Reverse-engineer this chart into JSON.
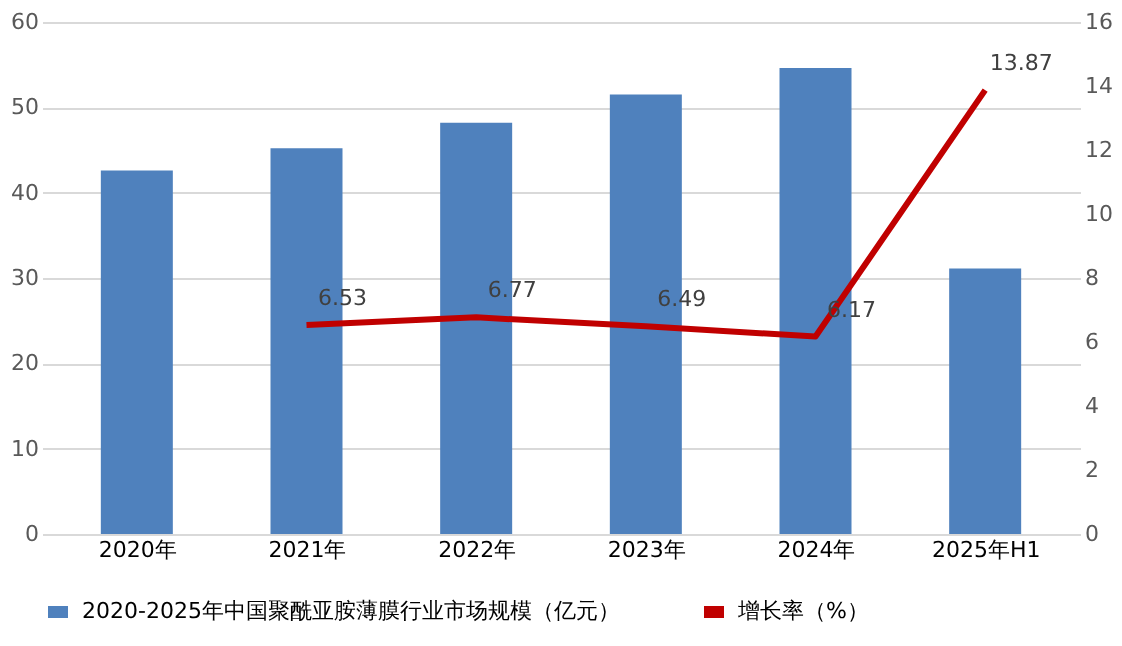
{
  "chart_data": {
    "type": "bar",
    "categories": [
      "2020年",
      "2021年",
      "2022年",
      "2023年",
      "2024年",
      "2025年H1"
    ],
    "series": [
      {
        "name": "2020-2025年中国聚酰亚胺薄膜行业市场规模（亿元）",
        "color": "#4f81bd",
        "values": [
          42.6,
          45.2,
          48.2,
          51.5,
          54.6,
          31.1
        ]
      },
      {
        "name": "增长率（%）",
        "type": "line",
        "axis": "y2",
        "color": "#c00000",
        "values": [
          null,
          6.53,
          6.77,
          6.49,
          6.17,
          13.87
        ],
        "value_labels": [
          null,
          "6.53",
          "6.77",
          "6.49",
          "6.17",
          "13.87"
        ]
      }
    ],
    "ylim": [
      0,
      60
    ],
    "yticks": [
      0,
      10,
      20,
      30,
      40,
      50,
      60
    ],
    "y2lim": [
      0,
      16
    ],
    "y2ticks": [
      0,
      2,
      4,
      6,
      8,
      10,
      12,
      14,
      16
    ],
    "grid": "y",
    "legend": "bottom",
    "marker": "none",
    "line_style": "solid"
  }
}
